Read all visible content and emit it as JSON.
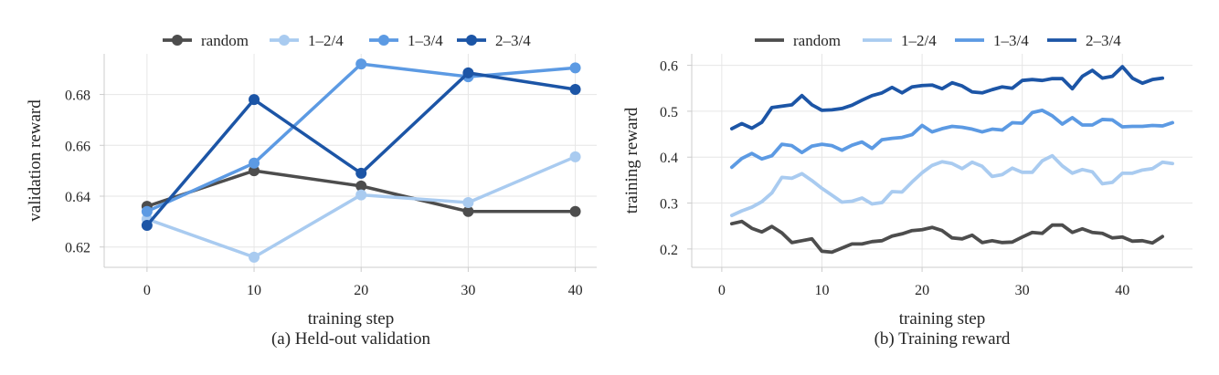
{
  "chart_data": [
    {
      "type": "line",
      "markers": true,
      "caption": "(a) Held-out validation",
      "xlabel": "training step",
      "ylabel": "validation reward",
      "xlim": [
        -4,
        42
      ],
      "ylim": [
        0.612,
        0.696
      ],
      "xticks": [
        0,
        10,
        20,
        30,
        40
      ],
      "xtick_labels": [
        "0",
        "10",
        "20",
        "30",
        "40"
      ],
      "yticks": [
        0.62,
        0.64,
        0.66,
        0.68
      ],
      "ytick_labels": [
        "0.62",
        "0.64",
        "0.66",
        "0.68"
      ],
      "grid": true,
      "legend_position": "top",
      "x": [
        0,
        10,
        20,
        30,
        40
      ],
      "series": [
        {
          "name": "random",
          "color": "#4d4d4d",
          "values": [
            0.636,
            0.65,
            0.644,
            0.634,
            0.634
          ]
        },
        {
          "name": "1–2/4",
          "color": "#a9cbf0",
          "values": [
            0.631,
            0.616,
            0.6405,
            0.6375,
            0.6555
          ]
        },
        {
          "name": "1–3/4",
          "color": "#5c9ae3",
          "values": [
            0.634,
            0.653,
            0.692,
            0.687,
            0.6905
          ]
        },
        {
          "name": "2–3/4",
          "color": "#1c55a6",
          "values": [
            0.6285,
            0.678,
            0.649,
            0.6885,
            0.682
          ]
        }
      ]
    },
    {
      "type": "line",
      "markers": false,
      "caption": "(b) Training reward",
      "xlabel": "training step",
      "ylabel": "training reward",
      "xlim": [
        -3,
        47
      ],
      "ylim": [
        0.16,
        0.625
      ],
      "xticks": [
        0,
        10,
        20,
        30,
        40
      ],
      "xtick_labels": [
        "0",
        "10",
        "20",
        "30",
        "40"
      ],
      "yticks": [
        0.2,
        0.3,
        0.4,
        0.5,
        0.6
      ],
      "ytick_labels": [
        "0.2",
        "0.3",
        "0.4",
        "0.5",
        "0.6"
      ],
      "grid": true,
      "legend_position": "top",
      "x": [
        1,
        2,
        3,
        4,
        5,
        6,
        7,
        8,
        9,
        10,
        11,
        12,
        13,
        14,
        15,
        16,
        17,
        18,
        19,
        20,
        21,
        22,
        23,
        24,
        25,
        26,
        27,
        28,
        29,
        30,
        31,
        32,
        33,
        34,
        35,
        36,
        37,
        38,
        39,
        40,
        41,
        42,
        43,
        44,
        45
      ],
      "series": [
        {
          "name": "random",
          "color": "#4d4d4d",
          "values": [
            0.255,
            0.26,
            0.245,
            0.237,
            0.249,
            0.235,
            0.214,
            0.218,
            0.222,
            0.195,
            0.193,
            0.202,
            0.211,
            0.211,
            0.216,
            0.218,
            0.228,
            0.233,
            0.24,
            0.242,
            0.247,
            0.24,
            0.224,
            0.222,
            0.23,
            0.214,
            0.218,
            0.214,
            0.215,
            0.226,
            0.236,
            0.234,
            0.252,
            0.252,
            0.236,
            0.244,
            0.236,
            0.234,
            0.224,
            0.226,
            0.217,
            0.218,
            0.213,
            0.227,
            null
          ]
        },
        {
          "name": "1–2/4",
          "color": "#a9cbf0",
          "values": [
            0.273,
            0.283,
            0.291,
            0.303,
            0.322,
            0.356,
            0.354,
            0.364,
            0.349,
            0.332,
            0.317,
            0.302,
            0.304,
            0.311,
            0.298,
            0.301,
            0.325,
            0.324,
            0.346,
            0.366,
            0.382,
            0.39,
            0.386,
            0.375,
            0.389,
            0.38,
            0.358,
            0.362,
            0.376,
            0.367,
            0.367,
            0.392,
            0.403,
            0.381,
            0.365,
            0.373,
            0.368,
            0.342,
            0.345,
            0.365,
            0.365,
            0.372,
            0.375,
            0.389,
            0.386
          ]
        },
        {
          "name": "1–3/4",
          "color": "#5c9ae3",
          "values": [
            0.378,
            0.397,
            0.408,
            0.396,
            0.403,
            0.428,
            0.425,
            0.41,
            0.424,
            0.428,
            0.425,
            0.415,
            0.426,
            0.433,
            0.419,
            0.438,
            0.441,
            0.443,
            0.449,
            0.469,
            0.455,
            0.462,
            0.467,
            0.465,
            0.461,
            0.455,
            0.461,
            0.459,
            0.475,
            0.474,
            0.497,
            0.502,
            0.49,
            0.472,
            0.486,
            0.47,
            0.47,
            0.482,
            0.481,
            0.466,
            0.467,
            0.467,
            0.469,
            0.468,
            0.475
          ]
        },
        {
          "name": "2–3/4",
          "color": "#1c55a6",
          "values": [
            0.462,
            0.473,
            0.463,
            0.476,
            0.508,
            0.511,
            0.514,
            0.534,
            0.514,
            0.502,
            0.503,
            0.506,
            0.513,
            0.524,
            0.534,
            0.54,
            0.552,
            0.54,
            0.553,
            0.556,
            0.557,
            0.549,
            0.562,
            0.555,
            0.542,
            0.54,
            0.547,
            0.553,
            0.55,
            0.567,
            0.569,
            0.567,
            0.571,
            0.571,
            0.549,
            0.576,
            0.589,
            0.572,
            0.576,
            0.597,
            0.572,
            0.561,
            0.569,
            0.572,
            null
          ]
        }
      ]
    }
  ]
}
